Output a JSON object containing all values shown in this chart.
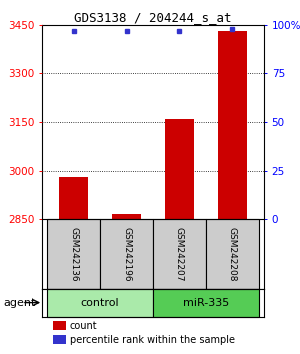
{
  "title": "GDS3138 / 204244_s_at",
  "samples": [
    "GSM242136",
    "GSM242196",
    "GSM242207",
    "GSM242208"
  ],
  "count_values": [
    2980,
    2865,
    3160,
    3430
  ],
  "percentile_values": [
    97,
    97,
    97,
    98
  ],
  "ylim_left": [
    2850,
    3450
  ],
  "ylim_right": [
    0,
    100
  ],
  "yticks_left": [
    2850,
    3000,
    3150,
    3300,
    3450
  ],
  "yticks_right": [
    0,
    25,
    50,
    75,
    100
  ],
  "ytick_labels_right": [
    "0",
    "25",
    "50",
    "75",
    "100%"
  ],
  "bar_color": "#cc0000",
  "dot_color": "#3333cc",
  "control_color": "#aaeaaa",
  "mir_color": "#55cc55",
  "legend_count_color": "#cc0000",
  "legend_dot_color": "#3333cc",
  "bar_width": 0.55,
  "x_positions": [
    1,
    2,
    3,
    4
  ],
  "xlim": [
    0.4,
    4.6
  ],
  "title_fontsize": 9,
  "tick_fontsize": 7.5,
  "sample_fontsize": 6.5,
  "group_fontsize": 8,
  "legend_fontsize": 7
}
